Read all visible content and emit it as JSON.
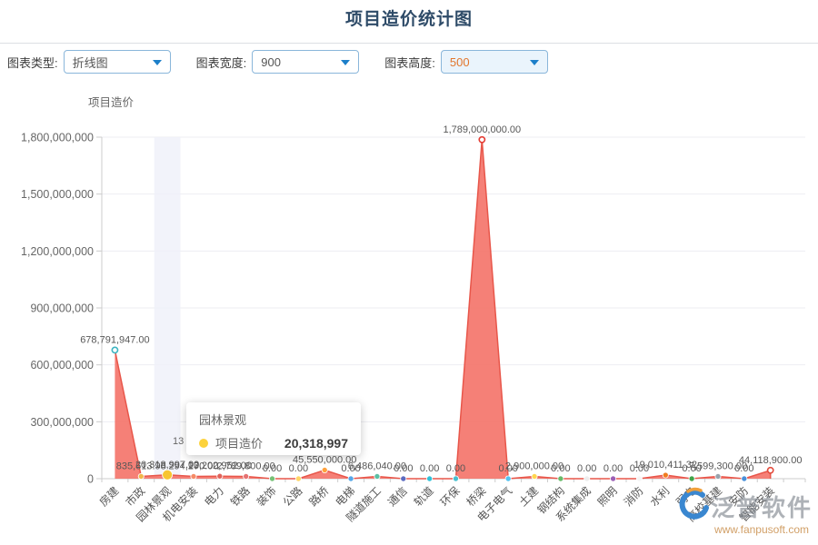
{
  "title": "项目造价统计图",
  "toolbar": {
    "fields": [
      {
        "label": "图表类型:",
        "value": "折线图",
        "accent": false
      },
      {
        "label": "图表宽度:",
        "value": "900",
        "accent": false
      },
      {
        "label": "图表高度:",
        "value": "500",
        "accent": true
      }
    ]
  },
  "chart_data": {
    "type": "area",
    "series_name": "项目造价",
    "ylabel": "项目造价",
    "ylim": [
      0,
      1800000000
    ],
    "y_tick_labels": [
      "0",
      "300,000,000",
      "600,000,000",
      "900,000,000",
      "1,200,000,000",
      "1,500,000,000",
      "1,800,000,000"
    ],
    "x_label_rotate": 45,
    "grid": true,
    "legend_position": "none",
    "categories": [
      "房建",
      "市政",
      "园林景观",
      "机电安装",
      "电力",
      "铁路",
      "装饰",
      "公路",
      "路桥",
      "电梯",
      "隧道施工",
      "通信",
      "轨道",
      "环保",
      "桥梁",
      "电子电气",
      "土建",
      "钢结构",
      "系统集成",
      "照明",
      "消防",
      "水利",
      "弱电",
      "高校基建",
      "安防",
      "智能安装"
    ],
    "values": [
      678791947.0,
      835613.98,
      20318997.0,
      294270.0,
      13202952.0,
      2789800.0,
      0,
      0,
      45550000.0,
      0,
      6486040.0,
      0,
      0,
      0,
      1789000000.0,
      0,
      2900000.0,
      0,
      0,
      0,
      0,
      19010411.32,
      0,
      7599300.0,
      0,
      44118900.0
    ],
    "value_labels": [
      "678,791,947.00",
      "835,613.98",
      "20,318,997.00",
      "294,270.00",
      "13,202,952.00",
      "2,789,800.00",
      "0.00",
      "0.00",
      "45,550,000.00",
      "0.00",
      "6,486,040.00",
      "0.00",
      "0.00",
      "0.00",
      "1,789,000,000.00",
      "0.00",
      "2,900,000.00",
      "0.00",
      "0.00",
      "0.00",
      "0.00",
      "19,010,411.32",
      "0.00",
      "7,599,300.00",
      "0.00",
      "44,118,900.00"
    ],
    "point_colors": [
      "#3bb4c1",
      "#f2b84b",
      "#f7c531",
      "#f58b67",
      "#e0635a",
      "#e57373",
      "#76c176",
      "#ffd666",
      "#ffa13c",
      "#56a7e8",
      "#5cbfa4",
      "#5c6bc0",
      "#30c1d8",
      "#49c0cf",
      "#e43b32",
      "#53c3f1",
      "#ffd54f",
      "#67bb6a",
      "#ededed",
      "#9c5fb5",
      "#f5f5f5",
      "#f07c1f",
      "#3fa54a",
      "#98a3ad",
      "#4a90d9",
      "#e24a3b"
    ],
    "hollow_points": [
      0,
      14,
      25
    ],
    "hover_index": 2,
    "colors": {
      "line": "#e8564a",
      "area": "#f4756b",
      "hover_band": "#eff0f9",
      "grid": "#ededf2",
      "axis": "#cccccc",
      "data_label": "#575757",
      "tick_label": "#666666"
    }
  },
  "tooltip": {
    "title": "园林景观",
    "series": "项目造价",
    "value": "20,318,997",
    "dot_color": "#fcd23c"
  },
  "clipped_label": "13",
  "watermark": {
    "brand": "泛普软件",
    "url": "www.fanpusoft.com"
  }
}
